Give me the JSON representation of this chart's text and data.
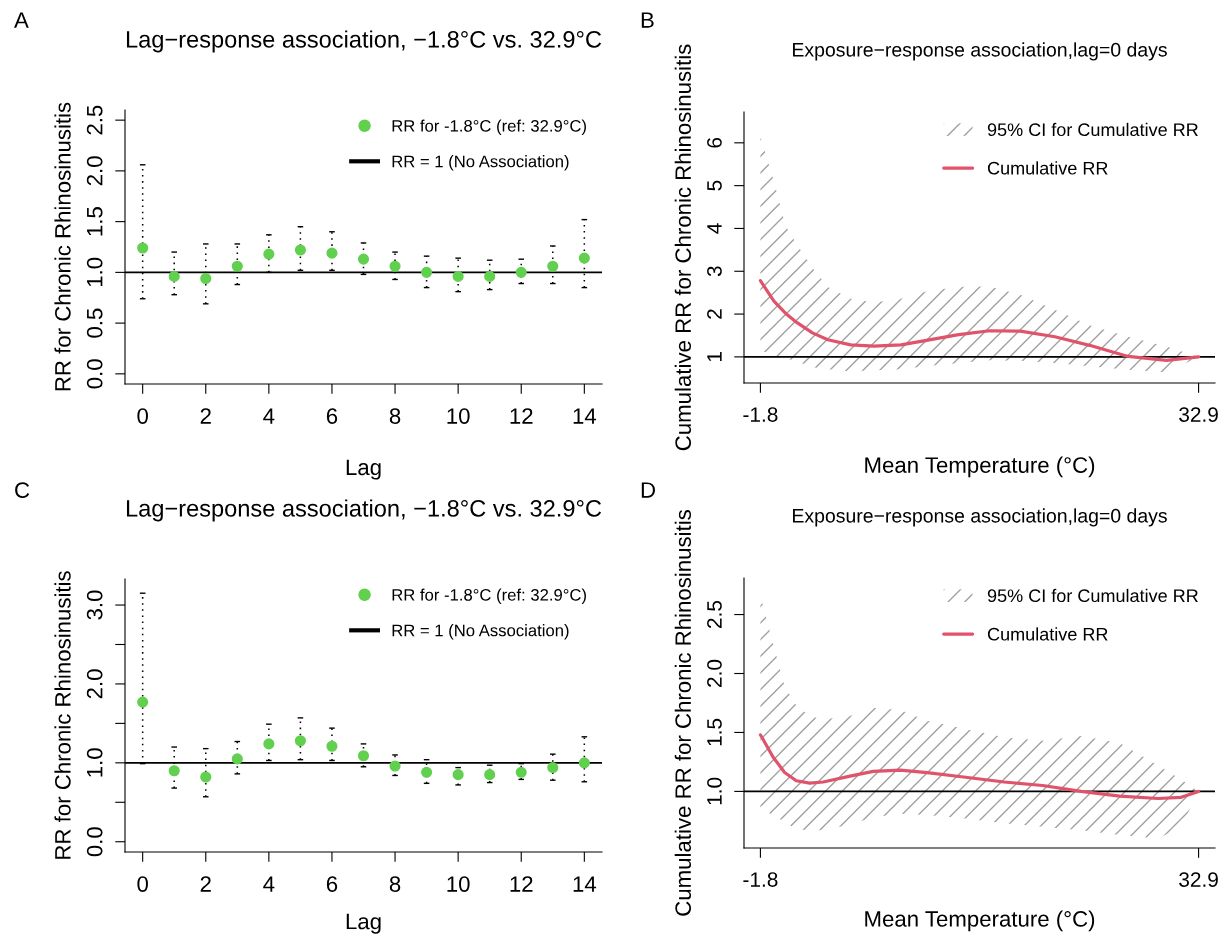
{
  "chart_data": [
    {
      "type": "scatter",
      "title": "Lag−response association, −1.8°C vs. 32.9°C",
      "xlabel": "Lag",
      "ylabel": "RR for Chronic Rhinosinusitis",
      "annotations": [
        "A"
      ],
      "xlim": [
        -0.56,
        14.56
      ],
      "xticks": [
        0,
        2,
        4,
        6,
        8,
        10,
        12,
        14
      ],
      "ylim": [
        -0.1,
        2.6
      ],
      "yticks": [
        {
          "value": 0,
          "label": "0.0"
        },
        {
          "value": 0.5,
          "label": "0.5"
        },
        {
          "value": 1,
          "label": "1.0"
        },
        {
          "value": 1.5,
          "label": "1.5"
        },
        {
          "value": 2,
          "label": "2.0"
        },
        {
          "value": 2.5,
          "label": "2.5"
        }
      ],
      "marker": "circle",
      "legend": "top right",
      "ref_lines": [
        {
          "axis": "y",
          "value": 1,
          "label": "RR = 1 (No Association)",
          "color": "#000000"
        }
      ],
      "series": [
        {
          "name": "RR for -1.8°C (ref: 32.9°C)",
          "color": "#61d04f",
          "x": [
            0,
            1,
            2,
            3,
            4,
            5,
            6,
            7,
            8,
            9,
            10,
            11,
            12,
            13,
            14
          ],
          "values": [
            1.24,
            0.96,
            0.94,
            1.06,
            1.18,
            1.22,
            1.19,
            1.13,
            1.06,
            1.0,
            0.96,
            0.96,
            1.0,
            1.06,
            1.14
          ],
          "errors": [
            [
              0.74,
              2.06
            ],
            [
              0.78,
              1.2
            ],
            [
              0.69,
              1.28
            ],
            [
              0.88,
              1.28
            ],
            [
              1.0,
              1.37
            ],
            [
              1.02,
              1.45
            ],
            [
              1.02,
              1.4
            ],
            [
              0.98,
              1.29
            ],
            [
              0.93,
              1.2
            ],
            [
              0.85,
              1.16
            ],
            [
              0.81,
              1.14
            ],
            [
              0.83,
              1.12
            ],
            [
              0.89,
              1.13
            ],
            [
              0.89,
              1.26
            ],
            [
              0.85,
              1.52
            ]
          ]
        }
      ]
    },
    {
      "type": "line",
      "title": "Exposure−response association,lag=0 days",
      "xlabel": "Mean Temperature (°C)",
      "ylabel": "Cumulative RR for Chronic Rhinosinusitis",
      "annotations": [
        "B",
        "95% CI for Cumulative RR"
      ],
      "xlim": [
        -3.1,
        34.2
      ],
      "xticks": [
        -1.8,
        32.9
      ],
      "ylim": [
        0.39,
        6.72
      ],
      "yticks": [
        1,
        2,
        3,
        4,
        5,
        6
      ],
      "legend": "top right",
      "ref_lines": [
        {
          "axis": "y",
          "value": 1,
          "color": "#000000"
        }
      ],
      "series": [
        {
          "name": "Cumulative RR",
          "color": "#df536b",
          "x": [
            -1.8,
            -0.73,
            0.18,
            1.1,
            2.32,
            3.54,
            5.36,
            7.19,
            9.33,
            11.46,
            13.9,
            16.34,
            18.78,
            21.52,
            24.27,
            27.32,
            30.36,
            32.9
          ],
          "values": [
            2.78,
            2.3,
            2.02,
            1.8,
            1.56,
            1.4,
            1.28,
            1.25,
            1.28,
            1.39,
            1.52,
            1.61,
            1.6,
            1.47,
            1.27,
            1.01,
            0.92,
            1.0
          ],
          "upper": [
            6.15,
            5.1,
            4.07,
            3.62,
            3.08,
            2.63,
            2.36,
            2.27,
            2.36,
            2.54,
            2.63,
            2.65,
            2.45,
            2.1,
            1.74,
            1.47,
            1.24,
            1.0
          ],
          "lower": [
            1.15,
            1.04,
            0.96,
            0.9,
            0.76,
            0.71,
            0.66,
            0.69,
            0.71,
            0.79,
            0.86,
            0.92,
            0.91,
            0.86,
            0.78,
            0.7,
            0.64,
            1.0
          ]
        }
      ]
    },
    {
      "type": "scatter",
      "title": "Lag−response association, −1.8°C vs. 32.9°C",
      "xlabel": "Lag",
      "ylabel": "RR for Chronic Rhinosinusitis",
      "annotations": [
        "C"
      ],
      "xlim": [
        -0.56,
        14.56
      ],
      "xticks": [
        0,
        2,
        4,
        6,
        8,
        10,
        12,
        14
      ],
      "ylim": [
        -0.13,
        3.33
      ],
      "yticks": [
        {
          "value": 0,
          "label": "0.0"
        },
        {
          "value": 0.5,
          "label": null
        },
        {
          "value": 1,
          "label": "1.0"
        },
        {
          "value": 1.5,
          "label": null
        },
        {
          "value": 2,
          "label": "2.0"
        },
        {
          "value": 2.5,
          "label": null
        },
        {
          "value": 3,
          "label": "3.0"
        }
      ],
      "marker": "circle",
      "legend": "top right",
      "ref_lines": [
        {
          "axis": "y",
          "value": 1,
          "label": "RR = 1 (No Association)",
          "color": "#000000"
        }
      ],
      "series": [
        {
          "name": "RR for -1.8°C (ref: 32.9°C)",
          "color": "#61d04f",
          "x": [
            0,
            1,
            2,
            3,
            4,
            5,
            6,
            7,
            8,
            9,
            10,
            11,
            12,
            13,
            14
          ],
          "values": [
            1.77,
            0.9,
            0.82,
            1.05,
            1.24,
            1.28,
            1.21,
            1.09,
            0.96,
            0.88,
            0.85,
            0.85,
            0.88,
            0.94,
            1.0
          ],
          "errors": [
            [
              0.99,
              3.15
            ],
            [
              0.68,
              1.2
            ],
            [
              0.57,
              1.18
            ],
            [
              0.86,
              1.27
            ],
            [
              1.03,
              1.49
            ],
            [
              1.04,
              1.57
            ],
            [
              1.03,
              1.44
            ],
            [
              0.95,
              1.24
            ],
            [
              0.84,
              1.1
            ],
            [
              0.74,
              1.04
            ],
            [
              0.72,
              0.94
            ],
            [
              0.75,
              0.97
            ],
            [
              0.79,
              0.99
            ],
            [
              0.78,
              1.11
            ],
            [
              0.76,
              1.33
            ]
          ]
        }
      ]
    },
    {
      "type": "line",
      "title": "Exposure−response association,lag=0 days",
      "xlabel": "Mean Temperature (°C)",
      "ylabel": "Cumulative RR for Chronic Rhinosinusitis",
      "annotations": [
        "D",
        "95% CI for Cumulative RR"
      ],
      "xlim": [
        -3.1,
        34.2
      ],
      "xticks": [
        -1.8,
        32.9
      ],
      "ylim": [
        0.52,
        2.81
      ],
      "yticks": [
        {
          "value": 1,
          "label": "1.0"
        },
        {
          "value": 1.5,
          "label": "1.5"
        },
        {
          "value": 2,
          "label": "2.0"
        },
        {
          "value": 2.5,
          "label": "2.5"
        }
      ],
      "legend": "top right",
      "ref_lines": [
        {
          "axis": "y",
          "value": 1,
          "color": "#000000"
        }
      ],
      "series": [
        {
          "name": "Cumulative RR",
          "color": "#df536b",
          "x": [
            -1.8,
            -0.79,
            0.12,
            1.04,
            2.1,
            3.17,
            5.3,
            7.13,
            9.27,
            11.4,
            14.45,
            17.5,
            20.55,
            23.6,
            26.65,
            29.7,
            31.52,
            32.9
          ],
          "values": [
            1.48,
            1.29,
            1.16,
            1.09,
            1.07,
            1.08,
            1.13,
            1.17,
            1.18,
            1.16,
            1.12,
            1.08,
            1.05,
            1.0,
            0.96,
            0.94,
            0.95,
            1.0
          ],
          "upper": [
            2.66,
            2.25,
            1.89,
            1.73,
            1.64,
            1.61,
            1.64,
            1.71,
            1.69,
            1.6,
            1.53,
            1.46,
            1.43,
            1.47,
            1.41,
            1.22,
            1.1,
            1.0
          ],
          "lower": [
            0.85,
            0.8,
            0.74,
            0.68,
            0.67,
            0.67,
            0.72,
            0.78,
            0.81,
            0.8,
            0.77,
            0.73,
            0.7,
            0.67,
            0.63,
            0.6,
            0.7,
            1.0
          ]
        }
      ]
    }
  ]
}
